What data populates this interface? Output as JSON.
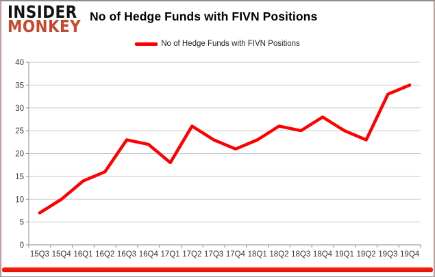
{
  "brand": {
    "line1": "INSIDER",
    "line2": "MONKEY"
  },
  "title": "No of Hedge Funds with FIVN Positions",
  "legend": {
    "label": "No of Hedge Funds with FIVN Positions",
    "color": "#fe0000"
  },
  "colors": {
    "line": "#fe0000",
    "grid": "#c8c8c8",
    "axis": "#8c8c8c",
    "tick_text": "#373737",
    "brand_black": "#131313",
    "brand_red": "#c6492f",
    "bottom_bar": "#e8170a"
  },
  "chart_data": {
    "type": "line",
    "title": "No of Hedge Funds with FIVN Positions",
    "categories": [
      "15Q3",
      "15Q4",
      "16Q1",
      "16Q2",
      "16Q3",
      "16Q4",
      "17Q1",
      "17Q2",
      "17Q3",
      "17Q4",
      "18Q1",
      "18Q2",
      "18Q3",
      "18Q4",
      "19Q1",
      "19Q2",
      "19Q3",
      "19Q4"
    ],
    "series": [
      {
        "name": "No of Hedge Funds with FIVN Positions",
        "color": "#fe0000",
        "values": [
          7,
          10,
          14,
          16,
          23,
          22,
          18,
          26,
          23,
          21,
          23,
          26,
          25,
          28,
          25,
          23,
          33,
          35
        ]
      }
    ],
    "xlabel": "",
    "ylabel": "",
    "ylim": [
      0,
      40
    ],
    "yticks": [
      0,
      5,
      10,
      15,
      20,
      25,
      30,
      35,
      40
    ],
    "grid": true,
    "legend_position": "top-center"
  }
}
